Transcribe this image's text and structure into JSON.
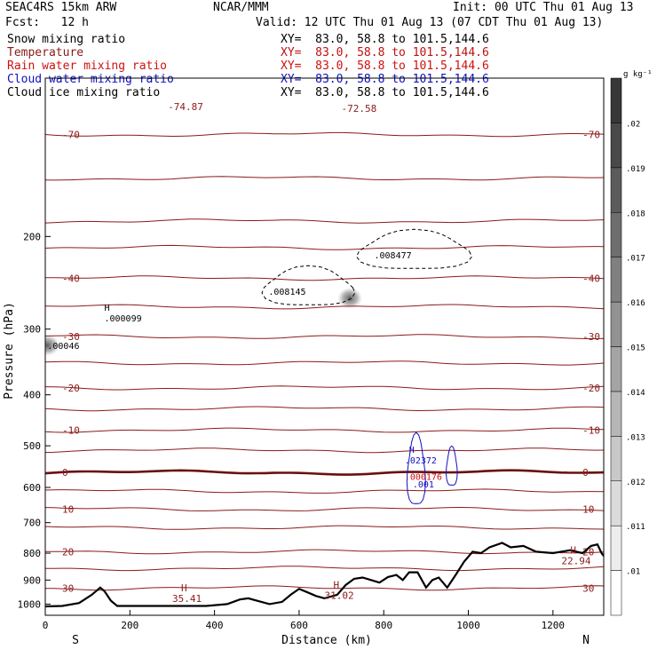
{
  "header": {
    "model": "SEAC4RS 15km ARW",
    "forecast": "Fcst:   12 h",
    "center": "NCAR/MMM",
    "init": "Init: 00 UTC Thu 01 Aug 13",
    "valid": "Valid: 12 UTC Thu 01 Aug 13 (07 CDT Thu 01 Aug 13)"
  },
  "fields": [
    {
      "name": "Snow mixing ratio",
      "xy": "XY=  83.0, 58.8 to 101.5,144.6",
      "color": "#000000"
    },
    {
      "name": "Temperature",
      "xy": "XY=  83.0, 58.8 to 101.5,144.6",
      "color": "#8b1a1a"
    },
    {
      "name": "Rain water mixing ratio",
      "xy": "XY=  83.0, 58.8 to 101.5,144.6",
      "color": "#d01010"
    },
    {
      "name": "Cloud water mixing ratio",
      "xy": "XY=  83.0, 58.8 to 101.5,144.6",
      "color": "#1010c0"
    },
    {
      "name": "Cloud ice mixing ratio",
      "xy": "XY=  83.0, 58.8 to 101.5,144.6",
      "color": "#000000"
    }
  ],
  "chart_data": {
    "type": "area",
    "xlabel": "Distance (km)",
    "ylabel": "Pressure (hPa)",
    "xlim": [
      0,
      1320
    ],
    "ylim": [
      1050,
      100
    ],
    "x_ticks": [
      0,
      200,
      400,
      600,
      800,
      1000,
      1200
    ],
    "y_ticks": [
      200,
      300,
      400,
      500,
      600,
      700,
      800,
      900,
      1000
    ],
    "y_scale": "log",
    "endpoints": {
      "left": "S",
      "right": "N"
    },
    "temperature_isotherms": [
      {
        "value": -70,
        "p": 128,
        "label": "-70"
      },
      {
        "value": -60,
        "p": 155
      },
      {
        "value": -50,
        "p": 187
      },
      {
        "value": -45,
        "p": 210
      },
      {
        "value": -40,
        "p": 240,
        "label": "-40"
      },
      {
        "value": -35,
        "p": 272
      },
      {
        "value": -30,
        "p": 310,
        "label": "-30"
      },
      {
        "value": -25,
        "p": 348
      },
      {
        "value": -20,
        "p": 388,
        "label": "-20"
      },
      {
        "value": -15,
        "p": 425
      },
      {
        "value": -10,
        "p": 467,
        "label": "-10"
      },
      {
        "value": -5,
        "p": 510
      },
      {
        "value": 0,
        "p": 562,
        "label": "0"
      },
      {
        "value": 5,
        "p": 610
      },
      {
        "value": 10,
        "p": 660,
        "label": "10"
      },
      {
        "value": 15,
        "p": 715
      },
      {
        "value": 20,
        "p": 795,
        "label": "20"
      },
      {
        "value": 25,
        "p": 855
      },
      {
        "value": 30,
        "p": 932,
        "label": "30"
      }
    ],
    "terrain": {
      "x": [
        0,
        40,
        80,
        110,
        130,
        140,
        155,
        170,
        190,
        230,
        300,
        380,
        430,
        460,
        480,
        500,
        530,
        560,
        580,
        600,
        620,
        640,
        660,
        690,
        710,
        730,
        750,
        770,
        790,
        810,
        830,
        845,
        860,
        880,
        900,
        915,
        930,
        950,
        970,
        990,
        1010,
        1030,
        1050,
        1080,
        1100,
        1130,
        1160,
        1200,
        1240,
        1270,
        1290,
        1305,
        1315,
        1320
      ],
      "p": [
        1010,
        1008,
        995,
        960,
        930,
        945,
        985,
        1008,
        1008,
        1008,
        1008,
        1008,
        1000,
        980,
        975,
        985,
        1000,
        990,
        960,
        935,
        950,
        965,
        975,
        960,
        920,
        895,
        890,
        900,
        910,
        888,
        880,
        900,
        870,
        870,
        930,
        900,
        890,
        930,
        880,
        830,
        795,
        800,
        780,
        765,
        780,
        775,
        795,
        800,
        790,
        800,
        775,
        770,
        800,
        810
      ]
    },
    "snow_contours": [
      {
        "label": "H .000099",
        "x": 150,
        "p": 290
      },
      {
        "label": ".008145",
        "x": 580,
        "p": 258
      },
      {
        "label": ".008477",
        "x": 830,
        "p": 220
      }
    ],
    "cloud_water_contours": [
      {
        "label": "H .02372",
        "x": 860,
        "p": 540
      },
      {
        "label": ".001",
        "x": 900,
        "p": 600
      }
    ],
    "rain_contours": [
      {
        "label": ".000176",
        "x": 860,
        "p": 572
      }
    ],
    "cloud_ice_shading": [
      {
        "label": ".00046",
        "x": 5,
        "p": 322
      },
      {
        "x": 720,
        "p": 262
      }
    ],
    "extrema": [
      {
        "label": "-74.87",
        "x": 290,
        "p": 115
      },
      {
        "label": "-72.58",
        "x": 700,
        "p": 116
      },
      {
        "label": "35.41",
        "x": 300,
        "p": 990
      },
      {
        "label": "31.02",
        "x": 660,
        "p": 978
      },
      {
        "label": "22.94",
        "x": 1220,
        "p": 840
      }
    ],
    "colorbar": {
      "unit": "g kg⁻¹",
      "levels": [
        ".01",
        ".011",
        ".012",
        ".013",
        ".014",
        ".015",
        ".016",
        ".017",
        ".018",
        ".019",
        ".02"
      ]
    }
  }
}
